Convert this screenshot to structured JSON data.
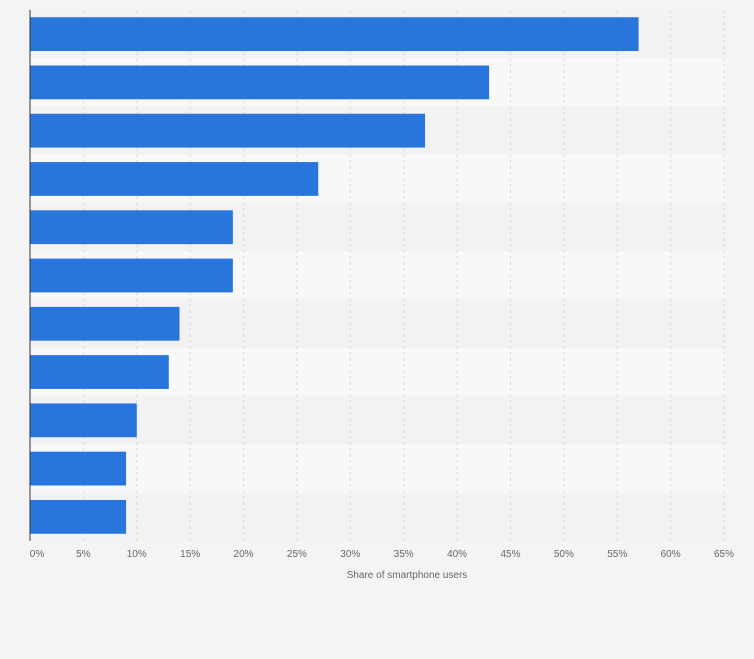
{
  "chart_data": {
    "type": "bar",
    "orientation": "horizontal",
    "categories": [
      "",
      "",
      "",
      "",
      "",
      "",
      "",
      "",
      "",
      "",
      ""
    ],
    "values": [
      57,
      43,
      37,
      27,
      19,
      19,
      14,
      13,
      10,
      9,
      9
    ],
    "title": "",
    "xlabel": "Share of smartphone users",
    "ylabel": "",
    "xlim": [
      0,
      65
    ],
    "xticks": [
      "0%",
      "5%",
      "10%",
      "15%",
      "20%",
      "25%",
      "30%",
      "35%",
      "40%",
      "45%",
      "50%",
      "55%",
      "60%",
      "65%"
    ],
    "grid": true,
    "colors": {
      "bar": "#2876dd",
      "band_dark": "#f2f2f2",
      "band_light": "#f8f8f8",
      "grid": "#dcdcdc",
      "axis": "#333333",
      "text": "#666666"
    }
  }
}
